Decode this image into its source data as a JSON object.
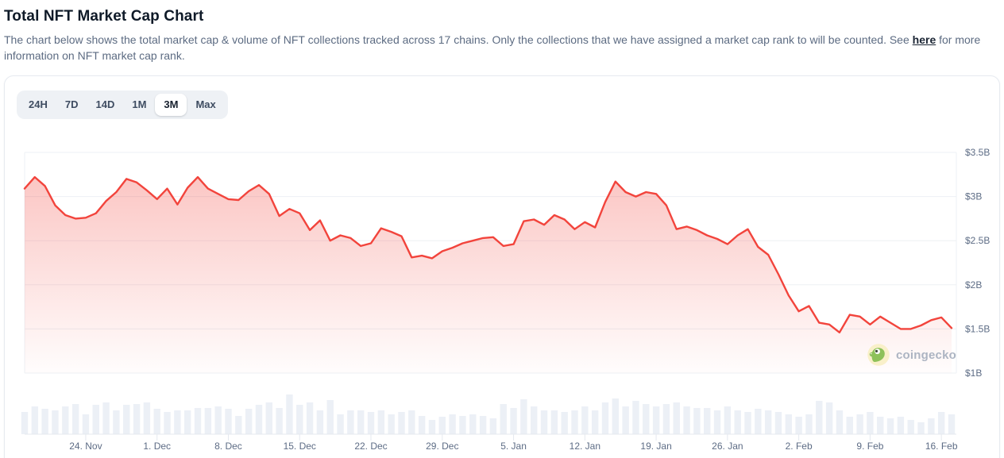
{
  "page": {
    "title": "Total NFT Market Cap Chart",
    "description": {
      "before_link": "The chart below shows the total market cap & volume of NFT collections tracked across 17 chains. Only the collections that we have assigned a market cap rank to will be counted. See",
      "link_label": "here",
      "after_link": "for more information on NFT market cap rank."
    }
  },
  "toolbar": {
    "ranges": [
      "24H",
      "7D",
      "14D",
      "1M",
      "3M",
      "Max"
    ],
    "active_range": "3M"
  },
  "watermark": {
    "brand": "coingecko"
  },
  "colors": {
    "line_red": "#f2443c",
    "area_fill_top": "rgba(242,68,60,0.30)",
    "area_fill_bottom": "rgba(242,68,60,0.01)",
    "volume_bar": "#ecf0f6",
    "grid_line": "#edf0f4",
    "axis_line": "#e5e9ef",
    "axis_text": "#5d6c85"
  },
  "chart_data": {
    "type": "area",
    "title": "Total NFT Market Cap (3M view)",
    "legend": "none",
    "grid": "horizontal",
    "point_count": 92,
    "y_axis": {
      "side": "right",
      "unit": "USD",
      "tick_labels": [
        "$3.5B",
        "$3B",
        "$2.5B",
        "$2B",
        "$1.5B",
        "$1B"
      ],
      "min": 1.0,
      "max": 3.5
    },
    "x_axis": {
      "tick_labels": [
        "24. Nov",
        "1. Dec",
        "8. Dec",
        "15. Dec",
        "22. Dec",
        "29. Dec",
        "5. Jan",
        "12. Jan",
        "19. Jan",
        "26. Jan",
        "2. Feb",
        "9. Feb",
        "16. Feb"
      ],
      "tick_indices": [
        6,
        13,
        20,
        27,
        34,
        41,
        48,
        55,
        62,
        69,
        76,
        83,
        90
      ]
    },
    "series": [
      {
        "name": "NFT Market Cap",
        "type": "area",
        "unit": "$B",
        "values": [
          3.09,
          3.22,
          3.12,
          2.9,
          2.79,
          2.75,
          2.76,
          2.81,
          2.95,
          3.05,
          3.2,
          3.16,
          3.07,
          2.97,
          3.09,
          2.91,
          3.1,
          3.22,
          3.09,
          3.03,
          2.97,
          2.96,
          3.06,
          3.13,
          3.03,
          2.78,
          2.86,
          2.81,
          2.62,
          2.73,
          2.5,
          2.56,
          2.53,
          2.44,
          2.47,
          2.64,
          2.6,
          2.55,
          2.31,
          2.33,
          2.3,
          2.38,
          2.42,
          2.47,
          2.5,
          2.53,
          2.54,
          2.44,
          2.46,
          2.72,
          2.74,
          2.68,
          2.79,
          2.74,
          2.63,
          2.71,
          2.65,
          2.94,
          3.17,
          3.05,
          3.0,
          3.05,
          3.03,
          2.9,
          2.63,
          2.66,
          2.62,
          2.56,
          2.52,
          2.46,
          2.56,
          2.63,
          2.43,
          2.34,
          2.12,
          1.88,
          1.7,
          1.76,
          1.57,
          1.55,
          1.46,
          1.66,
          1.64,
          1.55,
          1.64,
          1.57,
          1.5,
          1.5,
          1.54,
          1.6,
          1.63,
          1.51
        ]
      },
      {
        "name": "Volume",
        "type": "bar",
        "unit": "relative",
        "values": [
          0.56,
          0.7,
          0.64,
          0.6,
          0.7,
          0.76,
          0.5,
          0.74,
          0.8,
          0.6,
          0.74,
          0.76,
          0.8,
          0.64,
          0.56,
          0.6,
          0.6,
          0.66,
          0.66,
          0.7,
          0.64,
          0.46,
          0.64,
          0.74,
          0.8,
          0.66,
          1.0,
          0.74,
          0.8,
          0.6,
          0.86,
          0.5,
          0.6,
          0.6,
          0.56,
          0.6,
          0.5,
          0.56,
          0.6,
          0.46,
          0.36,
          0.44,
          0.5,
          0.46,
          0.5,
          0.46,
          0.4,
          0.76,
          0.66,
          0.88,
          0.7,
          0.6,
          0.6,
          0.56,
          0.6,
          0.7,
          0.6,
          0.8,
          0.9,
          0.7,
          0.84,
          0.76,
          0.7,
          0.76,
          0.8,
          0.7,
          0.66,
          0.66,
          0.6,
          0.7,
          0.6,
          0.56,
          0.64,
          0.6,
          0.56,
          0.5,
          0.44,
          0.5,
          0.84,
          0.8,
          0.6,
          0.44,
          0.5,
          0.56,
          0.44,
          0.4,
          0.44,
          0.36,
          0.3,
          0.4,
          0.56,
          0.5
        ]
      }
    ]
  }
}
